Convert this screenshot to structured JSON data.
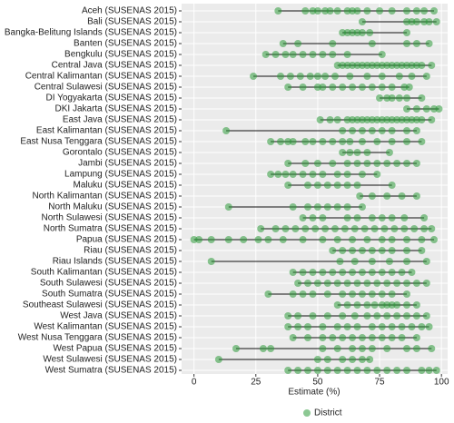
{
  "chart_data": {
    "type": "dot-range",
    "categories": [
      "Aceh (SUSENAS 2015)",
      "Bali (SUSENAS 2015)",
      "Bangka-Belitung Islands (SUSENAS 2015)",
      "Banten (SUSENAS 2015)",
      "Bengkulu (SUSENAS 2015)",
      "Central Java (SUSENAS 2015)",
      "Central Kalimantan (SUSENAS 2015)",
      "Central Sulawesi (SUSENAS 2015)",
      "DI Yogyakarta (SUSENAS 2015)",
      "DKI Jakarta (SUSENAS 2015)",
      "East Java (SUSENAS 2015)",
      "East Kalimantan (SUSENAS 2015)",
      "East Nusa Tenggara (SUSENAS 2015)",
      "Gorontalo (SUSENAS 2015)",
      "Jambi (SUSENAS 2015)",
      "Lampung (SUSENAS 2015)",
      "Maluku (SUSENAS 2015)",
      "North Kalimantan (SUSENAS 2015)",
      "North Maluku (SUSENAS 2015)",
      "North Sulawesi (SUSENAS 2015)",
      "North Sumatra (SUSENAS 2015)",
      "Papua (SUSENAS 2015)",
      "Riau (SUSENAS 2015)",
      "Riau Islands (SUSENAS 2015)",
      "South Kalimantan (SUSENAS 2015)",
      "South Sulawesi (SUSENAS 2015)",
      "South Sumatra (SUSENAS 2015)",
      "Southeast Sulawesi (SUSENAS 2015)",
      "West Java (SUSENAS 2015)",
      "West Kalimantan (SUSENAS 2015)",
      "West Nusa Tenggara (SUSENAS 2015)",
      "West Papua (SUSENAS 2015)",
      "West Sulawesi (SUSENAS 2015)",
      "West Sumatra (SUSENAS 2015)"
    ],
    "series": [
      {
        "name": "District",
        "color": "#2e9a3a",
        "values": [
          [
            34,
            45,
            48,
            50,
            53,
            55,
            58,
            62,
            64,
            66,
            70,
            75,
            80,
            86,
            90,
            93,
            97
          ],
          [
            68,
            86,
            88,
            90,
            93,
            95,
            98
          ],
          [
            60,
            62,
            64,
            66,
            68,
            71,
            86
          ],
          [
            36,
            42,
            56,
            72,
            86,
            90,
            95
          ],
          [
            29,
            33,
            37,
            40,
            44,
            48,
            52,
            56,
            62,
            76
          ],
          [
            58,
            60,
            62,
            64,
            66,
            68,
            70,
            72,
            74,
            76,
            78,
            80,
            82,
            84,
            86,
            88,
            90,
            92,
            96
          ],
          [
            24,
            35,
            39,
            43,
            47,
            50,
            53,
            57,
            63,
            70,
            76,
            83,
            88,
            94
          ],
          [
            38,
            44,
            50,
            52,
            56,
            60,
            64,
            68,
            72,
            76,
            80,
            85,
            87
          ],
          [
            75,
            78,
            80,
            83,
            86,
            92
          ],
          [
            86,
            90,
            94,
            97,
            99
          ],
          [
            51,
            55,
            58,
            62,
            64,
            66,
            68,
            70,
            72,
            74,
            76,
            78,
            80,
            82,
            84,
            86,
            88,
            90,
            92,
            96
          ],
          [
            13,
            60,
            64,
            68,
            72,
            76,
            80,
            86,
            90
          ],
          [
            31,
            35,
            38,
            40,
            45,
            48,
            52,
            56,
            60,
            63,
            68,
            74,
            80,
            86,
            92
          ],
          [
            60,
            63,
            66,
            70,
            79
          ],
          [
            38,
            45,
            50,
            56,
            62,
            66,
            70,
            74,
            78,
            82,
            86,
            90
          ],
          [
            31,
            34,
            37,
            40,
            44,
            48,
            52,
            58,
            62,
            68,
            74
          ],
          [
            38,
            46,
            50,
            54,
            58,
            62,
            66,
            80
          ],
          [
            67,
            72,
            78,
            84,
            90
          ],
          [
            14,
            40,
            46,
            50,
            54,
            58,
            62,
            68
          ],
          [
            44,
            48,
            52,
            62,
            66,
            72,
            76,
            80,
            85,
            93
          ],
          [
            27,
            33,
            37,
            41,
            45,
            49,
            53,
            57,
            61,
            65,
            69,
            73,
            77,
            81,
            85,
            89,
            93,
            96
          ],
          [
            0,
            2,
            7,
            14,
            20,
            26,
            30,
            36,
            44,
            52,
            58,
            64,
            70,
            76,
            80,
            86,
            92,
            97
          ],
          [
            56,
            60,
            64,
            68,
            72,
            76,
            80,
            86,
            92
          ],
          [
            7,
            59,
            65,
            72,
            79,
            86,
            94
          ],
          [
            40,
            44,
            48,
            52,
            56,
            60,
            64,
            68,
            72,
            76,
            80,
            84,
            88
          ],
          [
            42,
            46,
            50,
            54,
            58,
            62,
            66,
            70,
            74,
            78,
            82,
            86,
            90,
            94
          ],
          [
            30,
            40,
            44,
            48,
            54,
            60,
            64,
            68,
            72,
            76,
            80,
            86
          ],
          [
            58,
            62,
            66,
            70,
            73,
            76,
            78,
            80,
            82,
            86,
            90
          ],
          [
            38,
            42,
            48,
            54,
            60,
            65,
            70,
            74,
            78,
            82,
            86,
            90,
            94
          ],
          [
            38,
            42,
            46,
            52,
            58,
            62,
            66,
            72,
            76,
            80,
            84,
            88,
            92,
            95
          ],
          [
            40,
            46,
            52,
            56,
            60,
            64,
            68,
            72,
            76,
            80,
            84,
            90
          ],
          [
            17,
            28,
            31,
            52,
            58,
            64,
            68,
            72,
            78,
            86,
            90,
            96
          ],
          [
            10,
            50,
            54,
            60,
            64,
            68,
            71
          ],
          [
            38,
            42,
            46,
            50,
            54,
            58,
            62,
            66,
            70,
            74,
            78,
            82,
            86,
            92,
            95,
            98
          ]
        ]
      }
    ],
    "x_label": "Estimate (%)",
    "xlim": [
      -5,
      102.5
    ],
    "xticks": [
      0,
      25,
      50,
      75,
      100
    ],
    "grid": true
  }
}
